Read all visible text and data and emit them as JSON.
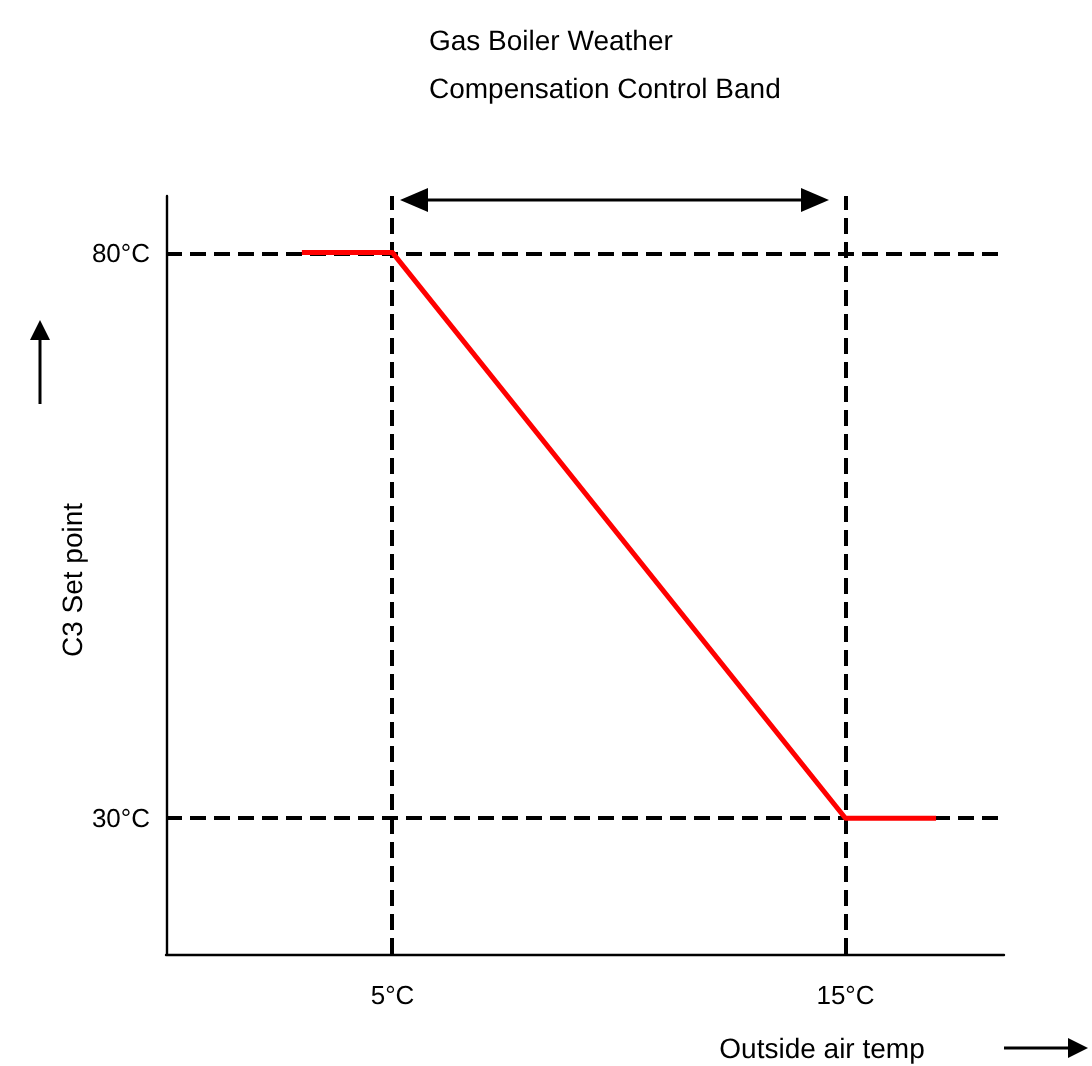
{
  "chart_data": {
    "type": "line",
    "annotations": [
      "Gas Boiler Weather Compensation Control Band"
    ],
    "xlabel": "Outside air temp",
    "ylabel": "C3 Set point",
    "x": [
      3,
      5,
      15,
      17
    ],
    "series": [
      {
        "color": "#ff0000",
        "values": [
          80,
          80,
          30,
          30
        ]
      }
    ],
    "xlim": [
      0,
      18.5
    ],
    "ylim": [
      18,
      85
    ],
    "xticks": [
      {
        "value": 5,
        "label": "5°C"
      },
      {
        "value": 15,
        "label": "15°C"
      }
    ],
    "yticks": [
      {
        "value": 30,
        "label": "30°C"
      },
      {
        "value": 80,
        "label": "80°C"
      }
    ],
    "ref_lines": [
      {
        "axis": "x",
        "value": 5,
        "color": "#000000",
        "line_style": "dashed"
      },
      {
        "axis": "x",
        "value": 15,
        "color": "#000000",
        "line_style": "dashed"
      },
      {
        "axis": "y",
        "value": 80,
        "color": "#000000",
        "line_style": "dashed"
      },
      {
        "axis": "y",
        "value": 30,
        "color": "#000000",
        "line_style": "dashed"
      }
    ],
    "grid": false,
    "marker": "none",
    "line_style": "solid"
  }
}
